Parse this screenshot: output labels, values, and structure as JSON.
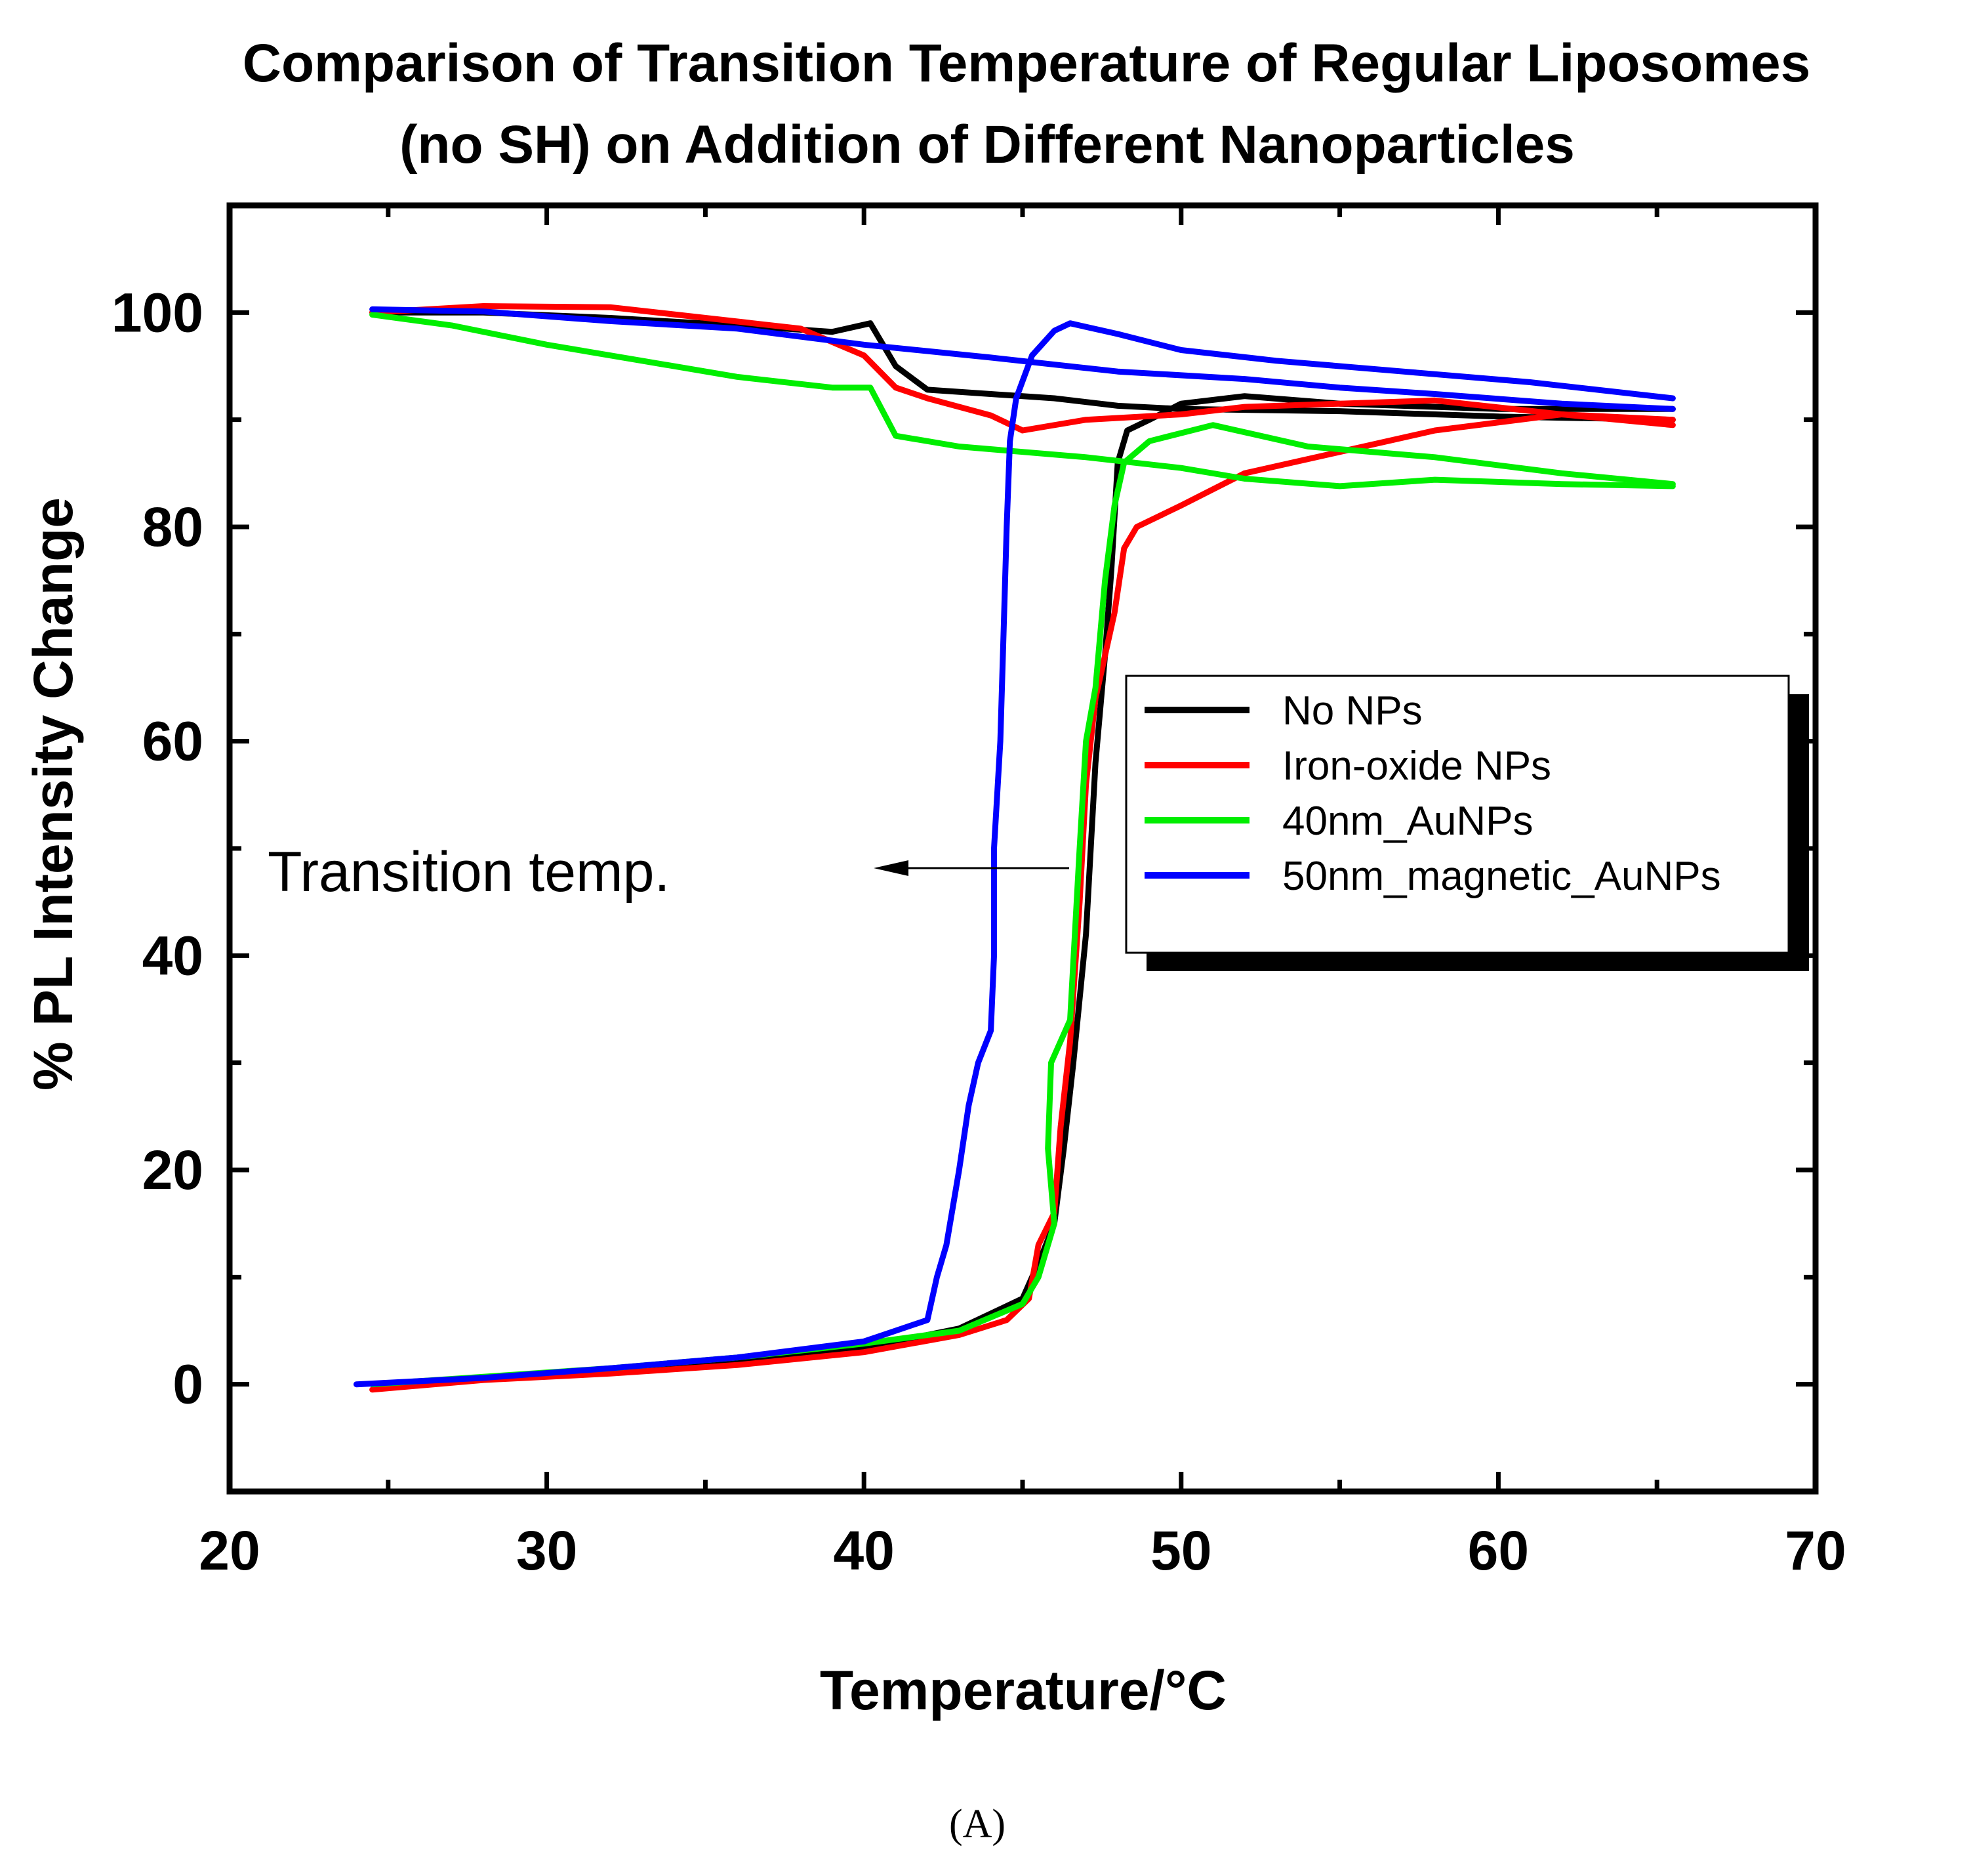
{
  "chart_data": {
    "type": "line",
    "title_line1": "Comparison of Transition Temperature of Regular Liposomes",
    "title_line2": "(no SH) on Addition of Different Nanoparticles",
    "xlabel": "Temperature/°C",
    "ylabel": "% PL Intensity Change",
    "xlim": [
      20,
      70
    ],
    "ylim": [
      -10,
      110
    ],
    "xticks": [
      20,
      30,
      40,
      50,
      60,
      70
    ],
    "yticks": [
      0,
      20,
      40,
      60,
      80,
      100
    ],
    "grid": false,
    "legend_position": "center-right",
    "annotation": "Transition temp.",
    "caption": "(A)",
    "series": [
      {
        "name": "No NPs",
        "color": "#000000",
        "heating": [
          [
            24.5,
            0
          ],
          [
            28,
            0.6
          ],
          [
            32,
            1.2
          ],
          [
            36,
            2.1
          ],
          [
            40,
            3.4
          ],
          [
            43,
            5.2
          ],
          [
            45,
            8
          ],
          [
            45.6,
            12
          ],
          [
            46,
            15
          ],
          [
            46.3,
            22
          ],
          [
            46.6,
            30
          ],
          [
            47,
            42
          ],
          [
            47.3,
            58
          ],
          [
            47.6,
            68
          ],
          [
            47.8,
            76
          ],
          [
            48,
            86
          ],
          [
            48.3,
            89
          ],
          [
            49,
            90
          ],
          [
            50,
            91.5
          ],
          [
            52,
            92.2
          ],
          [
            55,
            91.5
          ],
          [
            60,
            91
          ],
          [
            65.5,
            91
          ]
        ],
        "cooling": [
          [
            65.5,
            90
          ],
          [
            60,
            90.3
          ],
          [
            55,
            90.8
          ],
          [
            50,
            91
          ],
          [
            48,
            91.3
          ],
          [
            46,
            92
          ],
          [
            44,
            92.4
          ],
          [
            42,
            92.8
          ],
          [
            41,
            95
          ],
          [
            40.2,
            99
          ],
          [
            39,
            98.2
          ],
          [
            36,
            98.8
          ],
          [
            32,
            99.5
          ],
          [
            28,
            100
          ],
          [
            24.5,
            100
          ]
        ]
      },
      {
        "name": "Iron-oxide NPs",
        "color": "#ff0000",
        "heating": [
          [
            24.5,
            -0.5
          ],
          [
            28,
            0.4
          ],
          [
            32,
            1
          ],
          [
            36,
            1.8
          ],
          [
            40,
            3
          ],
          [
            43,
            4.6
          ],
          [
            44.5,
            6
          ],
          [
            45.2,
            8
          ],
          [
            45.5,
            13
          ],
          [
            46,
            16
          ],
          [
            46.2,
            24
          ],
          [
            46.5,
            32
          ],
          [
            46.8,
            45
          ],
          [
            47,
            56
          ],
          [
            47.3,
            64
          ],
          [
            47.6,
            68
          ],
          [
            47.9,
            72
          ],
          [
            48.2,
            78
          ],
          [
            48.6,
            80
          ],
          [
            50,
            82
          ],
          [
            52,
            85
          ],
          [
            55,
            87
          ],
          [
            58,
            89
          ],
          [
            62,
            90.5
          ],
          [
            65.5,
            90
          ]
        ],
        "cooling": [
          [
            65.5,
            89.5
          ],
          [
            62,
            90.5
          ],
          [
            58,
            91.8
          ],
          [
            55,
            91.5
          ],
          [
            52,
            91.2
          ],
          [
            50,
            90.5
          ],
          [
            47,
            90
          ],
          [
            45,
            89
          ],
          [
            44,
            90.4
          ],
          [
            42,
            92
          ],
          [
            41,
            93
          ],
          [
            40,
            96
          ],
          [
            38,
            98.5
          ],
          [
            35,
            99.5
          ],
          [
            32,
            100.5
          ],
          [
            28,
            100.6
          ],
          [
            24.5,
            100
          ]
        ]
      },
      {
        "name": "40nm_AuNPs",
        "color": "#00ee00",
        "heating": [
          [
            24.5,
            0
          ],
          [
            28,
            0.7
          ],
          [
            32,
            1.5
          ],
          [
            36,
            2.5
          ],
          [
            40,
            3.8
          ],
          [
            43,
            5
          ],
          [
            45,
            7.5
          ],
          [
            45.5,
            10
          ],
          [
            46,
            15
          ],
          [
            45.8,
            22
          ],
          [
            45.9,
            30
          ],
          [
            46.5,
            34
          ],
          [
            46.8,
            50
          ],
          [
            47,
            60
          ],
          [
            47.3,
            65
          ],
          [
            47.6,
            75
          ],
          [
            47.9,
            82
          ],
          [
            48.2,
            86
          ],
          [
            49,
            88
          ],
          [
            51,
            89.5
          ],
          [
            54,
            87.5
          ],
          [
            58,
            86.5
          ],
          [
            62,
            85
          ],
          [
            65.5,
            84
          ]
        ],
        "cooling": [
          [
            65.5,
            83.8
          ],
          [
            62,
            84
          ],
          [
            58,
            84.4
          ],
          [
            55,
            83.8
          ],
          [
            52,
            84.5
          ],
          [
            50,
            85.5
          ],
          [
            47,
            86.5
          ],
          [
            45,
            87
          ],
          [
            43,
            87.5
          ],
          [
            41,
            88.5
          ],
          [
            40.2,
            93
          ],
          [
            39,
            93
          ],
          [
            36,
            94
          ],
          [
            33,
            95.5
          ],
          [
            30,
            97
          ],
          [
            27,
            98.8
          ],
          [
            24.5,
            99.8
          ]
        ]
      },
      {
        "name": "50nm_magnetic_AuNPs",
        "color": "#0000ff",
        "heating": [
          [
            24,
            0
          ],
          [
            28,
            0.6
          ],
          [
            32,
            1.5
          ],
          [
            36,
            2.5
          ],
          [
            40,
            4
          ],
          [
            42,
            6
          ],
          [
            42.3,
            10
          ],
          [
            42.6,
            13
          ],
          [
            43,
            20
          ],
          [
            43.3,
            26
          ],
          [
            43.6,
            30
          ],
          [
            44,
            33
          ],
          [
            44.1,
            40
          ],
          [
            44.1,
            50
          ],
          [
            44.3,
            60
          ],
          [
            44.4,
            70
          ],
          [
            44.5,
            80
          ],
          [
            44.6,
            88
          ],
          [
            44.8,
            92
          ],
          [
            45.3,
            96
          ],
          [
            46,
            98.3
          ],
          [
            46.5,
            99
          ],
          [
            48,
            98
          ],
          [
            50,
            96.5
          ],
          [
            53,
            95.5
          ],
          [
            57,
            94.5
          ],
          [
            61,
            93.5
          ],
          [
            65.5,
            92
          ]
        ],
        "cooling": [
          [
            65.5,
            91
          ],
          [
            62,
            91.5
          ],
          [
            58,
            92.4
          ],
          [
            55,
            93
          ],
          [
            52,
            93.8
          ],
          [
            48,
            94.5
          ],
          [
            44,
            95.8
          ],
          [
            40,
            97
          ],
          [
            36,
            98.5
          ],
          [
            32,
            99.2
          ],
          [
            28,
            100.1
          ],
          [
            24.5,
            100.3
          ]
        ]
      }
    ]
  }
}
